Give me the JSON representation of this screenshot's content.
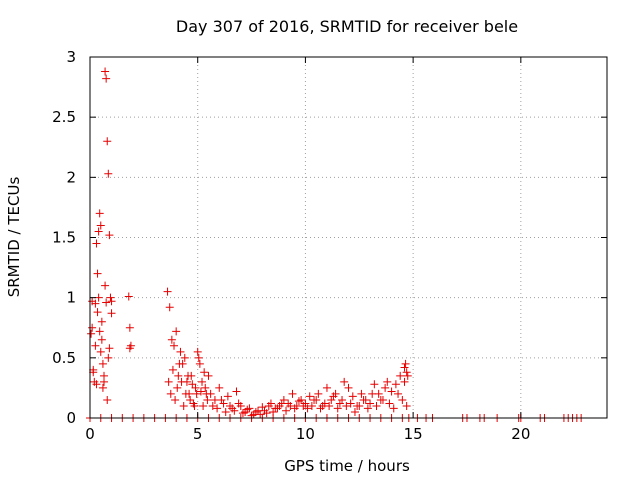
{
  "chart_data": {
    "type": "scatter",
    "title": "Day 307 of 2016, SRMTID for receiver bele",
    "xlabel": "GPS time / hours",
    "ylabel": "SRMTID / TECUs",
    "xlim": [
      0,
      24
    ],
    "ylim": [
      0,
      3
    ],
    "x_ticks": [
      0,
      5,
      10,
      15,
      20
    ],
    "x_tick_labels": [
      "0",
      "5",
      "10",
      "15",
      "20"
    ],
    "y_ticks": [
      0,
      0.5,
      1,
      1.5,
      2,
      2.5,
      3
    ],
    "y_tick_labels": [
      "0",
      "0.5",
      "1",
      "1.5",
      "2",
      "2.5",
      "3"
    ],
    "grid": true,
    "marker": "+",
    "color": "#e60000",
    "series": [
      {
        "name": "SRMTID",
        "x": [
          0.05,
          0.1,
          0.15,
          0.2,
          0.25,
          0.3,
          0.35,
          0.4,
          0.45,
          0.5,
          0.55,
          0.6,
          0.65,
          0.7,
          0.75,
          0.8,
          0.85,
          0.9,
          0.95,
          1.0,
          1.8,
          1.85,
          1.9,
          0.1,
          0.15,
          0.25,
          0.3,
          0.35,
          0.4,
          0.45,
          0.5,
          0.55,
          0.6,
          0.65,
          0.7,
          0.75,
          0.8,
          0.85,
          0.9,
          1.0,
          1.85,
          3.6,
          3.7,
          3.8,
          3.9,
          4.0,
          4.1,
          4.2,
          4.3,
          4.4,
          4.5,
          4.6,
          4.7,
          4.8,
          4.9,
          5.0,
          5.1,
          5.2,
          5.3,
          5.4,
          5.5,
          3.65,
          3.75,
          3.85,
          3.95,
          4.05,
          4.15,
          4.25,
          4.35,
          4.45,
          4.55,
          4.65,
          4.75,
          4.85,
          4.95,
          5.05,
          5.15,
          5.25,
          5.35,
          5.45,
          5.6,
          5.8,
          6.0,
          6.2,
          6.4,
          6.6,
          6.8,
          7.0,
          7.2,
          7.4,
          7.6,
          7.8,
          8.0,
          8.2,
          8.4,
          8.6,
          8.8,
          9.0,
          9.2,
          9.4,
          9.6,
          9.8,
          5.7,
          5.9,
          6.1,
          6.3,
          6.5,
          6.7,
          6.9,
          7.1,
          7.3,
          7.5,
          7.7,
          7.9,
          8.1,
          8.3,
          8.5,
          8.7,
          8.9,
          9.1,
          9.3,
          9.5,
          9.7,
          9.9,
          10.0,
          10.2,
          10.4,
          10.6,
          10.8,
          11.0,
          11.2,
          11.4,
          11.6,
          11.8,
          12.0,
          12.2,
          12.4,
          12.6,
          12.8,
          13.0,
          13.2,
          13.4,
          13.6,
          13.8,
          14.0,
          14.2,
          14.4,
          14.6,
          10.1,
          10.3,
          10.5,
          10.7,
          10.9,
          11.1,
          11.3,
          11.5,
          11.7,
          11.9,
          12.1,
          12.3,
          12.5,
          12.7,
          12.9,
          13.1,
          13.3,
          13.5,
          13.7,
          13.9,
          14.1,
          14.3,
          14.5,
          14.7,
          14.6,
          14.65,
          14.7,
          14.75,
          0.0,
          0.5,
          1.0,
          1.5,
          2.0,
          2.5,
          3.0,
          3.5,
          4.0,
          4.5,
          5.0,
          5.5,
          6.0,
          6.5,
          7.0,
          7.5,
          8.0,
          8.5,
          9.0,
          9.5,
          10.0,
          10.5,
          11.0,
          11.5,
          12.0,
          12.5,
          13.0,
          13.5,
          14.0,
          14.5,
          14.8,
          15.2,
          15.6,
          15.9,
          17.3,
          17.5,
          18.1,
          18.3,
          18.9,
          19.9,
          20.0,
          20.9,
          21.1,
          22.0,
          22.2,
          22.4,
          22.6,
          22.8
        ],
        "y": [
          0.7,
          0.97,
          0.4,
          0.3,
          0.6,
          1.45,
          1.2,
          1.55,
          1.7,
          1.6,
          0.8,
          0.45,
          0.3,
          2.88,
          2.82,
          2.3,
          2.03,
          1.52,
          1.0,
          0.87,
          1.01,
          0.75,
          0.6,
          0.75,
          0.38,
          0.95,
          0.28,
          0.88,
          1.0,
          0.72,
          0.55,
          0.65,
          0.25,
          0.35,
          1.1,
          0.96,
          0.15,
          0.5,
          0.58,
          0.97,
          0.58,
          1.05,
          0.92,
          0.65,
          0.6,
          0.72,
          0.35,
          0.55,
          0.45,
          0.5,
          0.3,
          0.2,
          0.35,
          0.12,
          0.25,
          0.55,
          0.45,
          0.3,
          0.38,
          0.2,
          0.35,
          0.3,
          0.2,
          0.4,
          0.15,
          0.25,
          0.45,
          0.3,
          0.1,
          0.2,
          0.35,
          0.15,
          0.28,
          0.1,
          0.2,
          0.5,
          0.22,
          0.1,
          0.25,
          0.15,
          0.2,
          0.15,
          0.25,
          0.12,
          0.18,
          0.08,
          0.22,
          0.1,
          0.05,
          0.08,
          0.03,
          0.06,
          0.09,
          0.04,
          0.12,
          0.08,
          0.1,
          0.15,
          0.12,
          0.2,
          0.1,
          0.15,
          0.1,
          0.08,
          0.15,
          0.05,
          0.1,
          0.06,
          0.12,
          0.04,
          0.07,
          0.02,
          0.05,
          0.03,
          0.06,
          0.1,
          0.05,
          0.08,
          0.12,
          0.06,
          0.1,
          0.08,
          0.14,
          0.1,
          0.12,
          0.18,
          0.15,
          0.2,
          0.1,
          0.25,
          0.15,
          0.2,
          0.12,
          0.3,
          0.25,
          0.18,
          0.1,
          0.2,
          0.15,
          0.12,
          0.28,
          0.2,
          0.15,
          0.3,
          0.22,
          0.28,
          0.35,
          0.3,
          0.08,
          0.1,
          0.15,
          0.08,
          0.12,
          0.1,
          0.18,
          0.08,
          0.15,
          0.1,
          0.12,
          0.05,
          0.1,
          0.15,
          0.08,
          0.2,
          0.1,
          0.15,
          0.25,
          0.12,
          0.08,
          0.2,
          0.15,
          0.1,
          0.42,
          0.45,
          0.38,
          0.35,
          0,
          0,
          0,
          0,
          0,
          0,
          0,
          0,
          0,
          0,
          0,
          0,
          0,
          0,
          0,
          0,
          0,
          0,
          0,
          0,
          0,
          0,
          0,
          0,
          0,
          0,
          0,
          0,
          0,
          0,
          0,
          0,
          0,
          0,
          0,
          0,
          0,
          0,
          0,
          0,
          0,
          0,
          0,
          0,
          0,
          0,
          0,
          0
        ]
      }
    ]
  }
}
